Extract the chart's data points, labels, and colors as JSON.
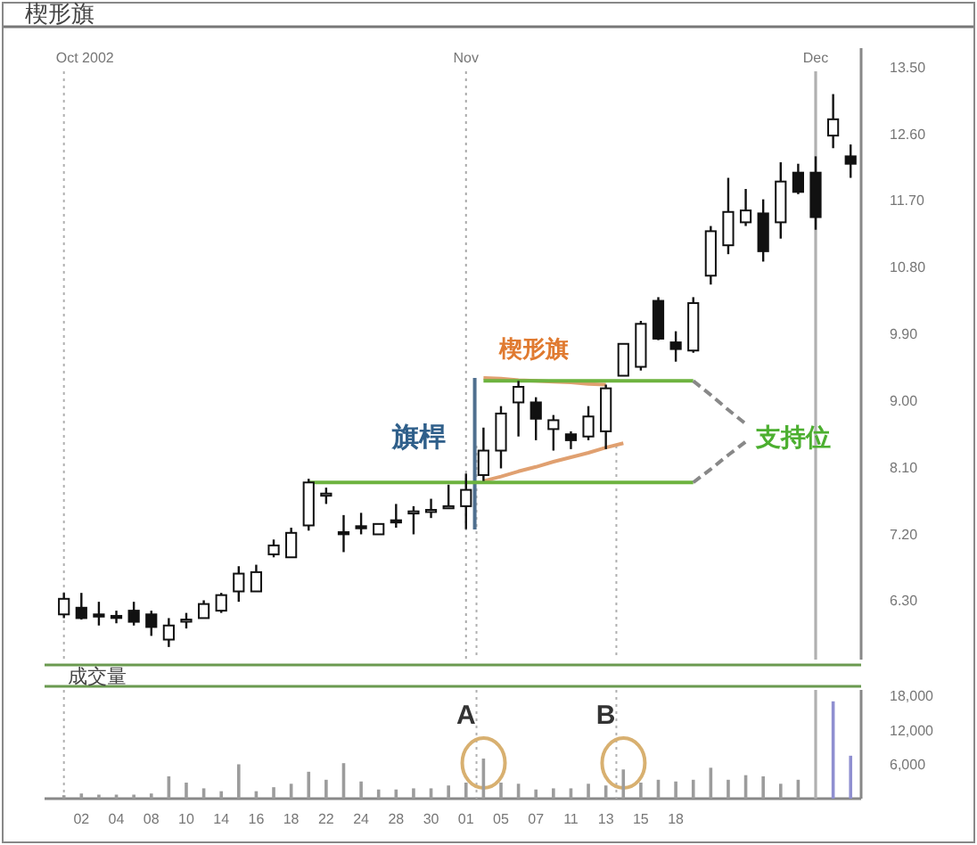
{
  "chart_data": [
    {
      "type": "candlestick",
      "title": "楔形旗",
      "categories": [
        null,
        "02",
        null,
        "04",
        null,
        "08",
        null,
        "10",
        null,
        "14",
        null,
        "16",
        null,
        "18",
        null,
        "22",
        null,
        "24",
        null,
        "28",
        null,
        "30",
        null,
        "01",
        null,
        "05",
        null,
        "07",
        null,
        "11",
        null,
        "13",
        null,
        "15",
        null,
        "18",
        null,
        null,
        null,
        null,
        null,
        null,
        null,
        null,
        null,
        null
      ],
      "ohlc": [
        [
          6.11,
          6.4,
          6.06,
          6.32
        ],
        [
          6.2,
          6.4,
          6.04,
          6.06
        ],
        [
          6.11,
          6.28,
          5.96,
          6.08
        ],
        [
          6.09,
          6.16,
          5.99,
          6.08
        ],
        [
          6.16,
          6.28,
          5.96,
          6.01
        ],
        [
          6.11,
          6.16,
          5.82,
          5.94
        ],
        [
          5.77,
          6.06,
          5.67,
          5.96
        ],
        [
          6.03,
          6.13,
          5.92,
          6.04
        ],
        [
          6.06,
          6.3,
          6.06,
          6.25
        ],
        [
          6.16,
          6.4,
          6.13,
          6.37
        ],
        [
          6.42,
          6.76,
          6.28,
          6.66
        ],
        [
          6.42,
          6.78,
          6.42,
          6.68
        ],
        [
          6.92,
          7.12,
          6.88,
          7.04
        ],
        [
          6.88,
          7.28,
          6.88,
          7.21
        ],
        [
          7.31,
          7.94,
          7.24,
          7.89
        ],
        [
          7.72,
          7.82,
          7.6,
          7.74
        ],
        [
          7.22,
          7.45,
          6.95,
          7.21
        ],
        [
          7.3,
          7.48,
          7.19,
          7.28
        ],
        [
          7.19,
          7.33,
          7.19,
          7.33
        ],
        [
          7.38,
          7.6,
          7.28,
          7.35
        ],
        [
          7.48,
          7.57,
          7.19,
          7.5
        ],
        [
          7.5,
          7.67,
          7.41,
          7.52
        ],
        [
          7.55,
          7.86,
          7.55,
          7.57
        ],
        [
          7.57,
          8.01,
          7.26,
          7.79
        ],
        [
          7.99,
          8.63,
          7.91,
          8.32
        ],
        [
          8.32,
          8.92,
          8.08,
          8.82
        ],
        [
          8.97,
          9.26,
          8.51,
          9.18
        ],
        [
          8.97,
          9.04,
          8.46,
          8.75
        ],
        [
          8.61,
          8.8,
          8.32,
          8.73
        ],
        [
          8.54,
          8.58,
          8.34,
          8.46
        ],
        [
          8.51,
          8.92,
          8.46,
          8.78
        ],
        [
          8.58,
          9.21,
          8.34,
          9.16
        ],
        [
          9.33,
          9.76,
          9.33,
          9.76
        ],
        [
          9.45,
          10.07,
          9.4,
          10.03
        ],
        [
          10.34,
          10.39,
          9.81,
          9.83
        ],
        [
          9.78,
          9.93,
          9.52,
          9.69
        ],
        [
          9.67,
          10.39,
          9.64,
          10.31
        ],
        [
          10.68,
          11.35,
          10.56,
          11.28
        ],
        [
          11.09,
          12.0,
          10.97,
          11.54
        ],
        [
          11.4,
          11.85,
          11.35,
          11.56
        ],
        [
          11.52,
          11.71,
          10.87,
          11.01
        ],
        [
          11.4,
          12.21,
          11.18,
          11.95
        ],
        [
          12.07,
          12.19,
          11.78,
          11.81
        ],
        [
          12.07,
          12.29,
          11.3,
          11.47
        ],
        [
          12.57,
          13.13,
          12.4,
          12.79
        ],
        [
          12.29,
          12.45,
          12.0,
          12.19
        ]
      ],
      "series": [
        {
          "type": "line",
          "color": "#e0a070",
          "values": [
            null,
            null,
            null,
            null,
            null,
            null,
            null,
            null,
            null,
            null,
            null,
            null,
            null,
            null,
            null,
            null,
            null,
            null,
            null,
            null,
            null,
            null,
            null,
            null,
            9.3,
            9.29,
            9.27,
            9.26,
            9.25,
            9.24,
            9.22,
            9.21,
            null,
            null,
            null,
            null,
            null,
            null,
            null,
            null,
            null,
            null,
            null,
            null,
            null,
            null
          ]
        },
        {
          "type": "line",
          "color": "#e0a070",
          "values": [
            null,
            null,
            null,
            null,
            null,
            null,
            null,
            null,
            null,
            null,
            null,
            null,
            null,
            null,
            null,
            null,
            null,
            null,
            null,
            null,
            null,
            null,
            null,
            null,
            7.91,
            7.97,
            8.04,
            8.1,
            8.17,
            8.23,
            8.29,
            8.36,
            8.42,
            null,
            null,
            null,
            null,
            null,
            null,
            null,
            null,
            null,
            null,
            null,
            null,
            null
          ]
        },
        {
          "type": "line",
          "color": "#6db33f",
          "values": [
            null,
            null,
            null,
            null,
            null,
            null,
            null,
            null,
            null,
            null,
            null,
            null,
            null,
            null,
            null,
            null,
            null,
            null,
            null,
            null,
            null,
            null,
            null,
            null,
            9.26,
            9.26,
            9.26,
            9.26,
            9.26,
            9.26,
            9.26,
            9.26,
            9.26,
            9.26,
            9.26,
            9.26,
            9.26,
            null,
            null,
            null,
            null,
            null,
            null,
            null,
            null,
            null
          ]
        },
        {
          "type": "line",
          "color": "#6db33f",
          "values": [
            null,
            null,
            null,
            null,
            null,
            null,
            null,
            null,
            null,
            null,
            null,
            null,
            null,
            null,
            7.89,
            7.89,
            7.89,
            7.89,
            7.89,
            7.89,
            7.89,
            7.89,
            7.89,
            7.89,
            7.89,
            7.89,
            7.89,
            7.89,
            7.89,
            7.89,
            7.89,
            7.89,
            7.89,
            7.89,
            7.89,
            7.89,
            7.89,
            null,
            null,
            null,
            null,
            null,
            null,
            null,
            null,
            null
          ]
        },
        {
          "type": "line",
          "color": "#888888",
          "line_style": "dashed",
          "values": [
            null,
            null,
            null,
            null,
            null,
            null,
            null,
            null,
            null,
            null,
            null,
            null,
            null,
            null,
            null,
            null,
            null,
            null,
            null,
            null,
            null,
            null,
            null,
            null,
            null,
            null,
            null,
            null,
            null,
            null,
            null,
            null,
            null,
            null,
            null,
            null,
            9.26,
            9.07,
            8.87,
            8.68,
            null,
            null,
            null,
            null,
            null,
            null
          ]
        },
        {
          "type": "line",
          "color": "#888888",
          "line_style": "dashed",
          "values": [
            null,
            null,
            null,
            null,
            null,
            null,
            null,
            null,
            null,
            null,
            null,
            null,
            null,
            null,
            null,
            null,
            null,
            null,
            null,
            null,
            null,
            null,
            null,
            null,
            null,
            null,
            null,
            null,
            null,
            null,
            null,
            null,
            null,
            null,
            null,
            null,
            7.89,
            8.07,
            8.26,
            8.44,
            null,
            null,
            null,
            null,
            null,
            null
          ]
        }
      ],
      "ylim": [
        5.5,
        13.75
      ],
      "yticks": [
        {
          "value": 6.3,
          "label": "6.30"
        },
        {
          "value": 7.2,
          "label": "7.20"
        },
        {
          "value": 8.1,
          "label": "8.10"
        },
        {
          "value": 9,
          "label": "9.00"
        },
        {
          "value": 9.9,
          "label": "9.90"
        },
        {
          "value": 10.8,
          "label": "10.80"
        },
        {
          "value": 11.7,
          "label": "11.70"
        },
        {
          "value": 12.6,
          "label": "12.60"
        },
        {
          "value": 13.5,
          "label": "13.50"
        }
      ],
      "tick_labels": "y",
      "ref_lines": [
        {
          "axis": "x",
          "value": "01",
          "label": "Nov",
          "line_style": "dotted",
          "color": "#aaaaaa"
        }
      ],
      "annotations": [
        "旗桿",
        "楔形旗",
        "支持位",
        "Oct 2002",
        "Dec"
      ]
    },
    {
      "type": "bar",
      "title": "成交量",
      "categories": [
        null,
        "02",
        null,
        "04",
        null,
        "08",
        null,
        "10",
        null,
        "14",
        null,
        "16",
        null,
        "18",
        null,
        "22",
        null,
        "24",
        null,
        "28",
        null,
        "30",
        null,
        "01",
        null,
        "05",
        null,
        "07",
        null,
        "11",
        null,
        "13",
        null,
        "15",
        null,
        "18",
        null,
        null,
        null,
        null,
        null,
        null,
        null,
        null,
        null,
        null
      ],
      "values": [
        600,
        900,
        700,
        700,
        700,
        900,
        3900,
        2800,
        1800,
        1300,
        6000,
        1300,
        2000,
        2600,
        4700,
        3300,
        6200,
        3000,
        1600,
        1600,
        1800,
        1800,
        2300,
        2800,
        7000,
        2800,
        2600,
        1600,
        1800,
        1800,
        2600,
        2300,
        5100,
        2800,
        3300,
        3000,
        3300,
        5400,
        3300,
        4100,
        3900,
        2600,
        3300,
        null,
        17000,
        7500
      ],
      "colors": [
        "#9c9c9c",
        "#9c9c9c",
        "#9c9c9c",
        "#9c9c9c",
        "#9c9c9c",
        "#9c9c9c",
        "#9c9c9c",
        "#9c9c9c",
        "#9c9c9c",
        "#9c9c9c",
        "#9c9c9c",
        "#9c9c9c",
        "#9c9c9c",
        "#9c9c9c",
        "#9c9c9c",
        "#9c9c9c",
        "#9c9c9c",
        "#9c9c9c",
        "#9c9c9c",
        "#9c9c9c",
        "#9c9c9c",
        "#9c9c9c",
        "#9c9c9c",
        "#9c9c9c",
        "#9c9c9c",
        "#9c9c9c",
        "#9c9c9c",
        "#9c9c9c",
        "#9c9c9c",
        "#9c9c9c",
        "#9c9c9c",
        "#9c9c9c",
        "#9c9c9c",
        "#9c9c9c",
        "#9c9c9c",
        "#9c9c9c",
        "#9c9c9c",
        "#9c9c9c",
        "#9c9c9c",
        "#9c9c9c",
        "#9c9c9c",
        "#9c9c9c",
        "#9c9c9c",
        null,
        "#8f8fd0",
        "#8f8fd0"
      ],
      "ylim": [
        0,
        19000
      ],
      "yticks": [
        {
          "value": 6000,
          "label": "6,000"
        },
        {
          "value": 12000,
          "label": "12,000"
        },
        {
          "value": 18000,
          "label": "18,000"
        }
      ],
      "annotations": [
        "A",
        "B"
      ]
    }
  ]
}
